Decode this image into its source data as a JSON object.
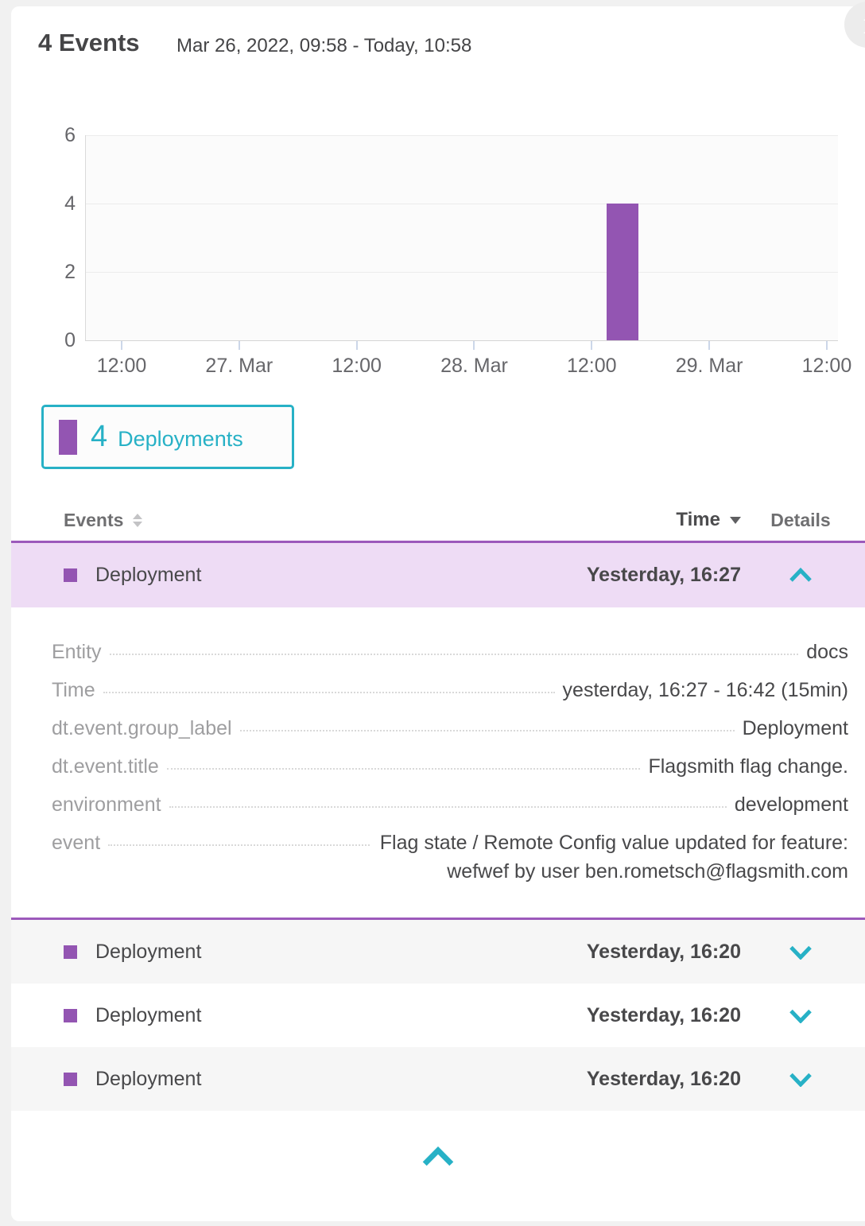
{
  "header": {
    "title": "4 Events",
    "time_range": "Mar 26, 2022, 09:58 - Today, 10:58"
  },
  "chart_data": {
    "type": "bar",
    "title": "",
    "xlabel": "",
    "ylabel": "",
    "ylim": [
      0,
      6
    ],
    "y_ticks": [
      0,
      2,
      4,
      6
    ],
    "x_tick_labels": [
      "12:00",
      "27. Mar",
      "12:00",
      "28. Mar",
      "12:00",
      "29. Mar",
      "12:00"
    ],
    "grid": "horizontal",
    "legend_position": "below-left",
    "series": [
      {
        "name": "Deployments",
        "color": "#9355b2",
        "bars": [
          {
            "x_label": "28. Mar, afternoon (just after 12:00)",
            "value": 4,
            "x_frac": 0.6924,
            "width_frac": 0.0423
          }
        ]
      }
    ]
  },
  "legend": {
    "count": "4",
    "label": "Deployments",
    "text_color": "#27b1c6",
    "swatch_color": "#9355b2"
  },
  "table": {
    "header": {
      "events_label": "Events",
      "time_label": "Time",
      "details_label": "Details"
    },
    "rows": [
      {
        "event_type": "Deployment",
        "time": "Yesterday, 16:27",
        "state": "expanded",
        "details": [
          {
            "key": "Entity",
            "value": "docs"
          },
          {
            "key": "Time",
            "value": "yesterday, 16:27 - 16:42 (15min)"
          },
          {
            "key": "dt.event.group_label",
            "value": "Deployment"
          },
          {
            "key": "dt.event.title",
            "value": "Flagsmith flag change."
          },
          {
            "key": "environment",
            "value": "development"
          },
          {
            "key": "event",
            "value": "Flag state / Remote Config value updated for feature: wefwef by user ben.rometsch@flagsmith.com"
          }
        ]
      },
      {
        "event_type": "Deployment",
        "time": "Yesterday, 16:20",
        "state": "collapsed"
      },
      {
        "event_type": "Deployment",
        "time": "Yesterday, 16:20",
        "state": "collapsed"
      },
      {
        "event_type": "Deployment",
        "time": "Yesterday, 16:20",
        "state": "collapsed"
      }
    ]
  },
  "icons": {
    "info": "info-icon",
    "sort": "sort-icon",
    "time_sort": "triangle-down-icon",
    "expand": "chevron-down-icon",
    "collapse": "chevron-up-icon"
  },
  "colors": {
    "accent_teal": "#27b1c6",
    "purple": "#9355b2",
    "purple_border": "#9c59bb",
    "row_highlight": "#eedcf5",
    "row_alt": "#f6f6f6",
    "info_text": "i"
  }
}
